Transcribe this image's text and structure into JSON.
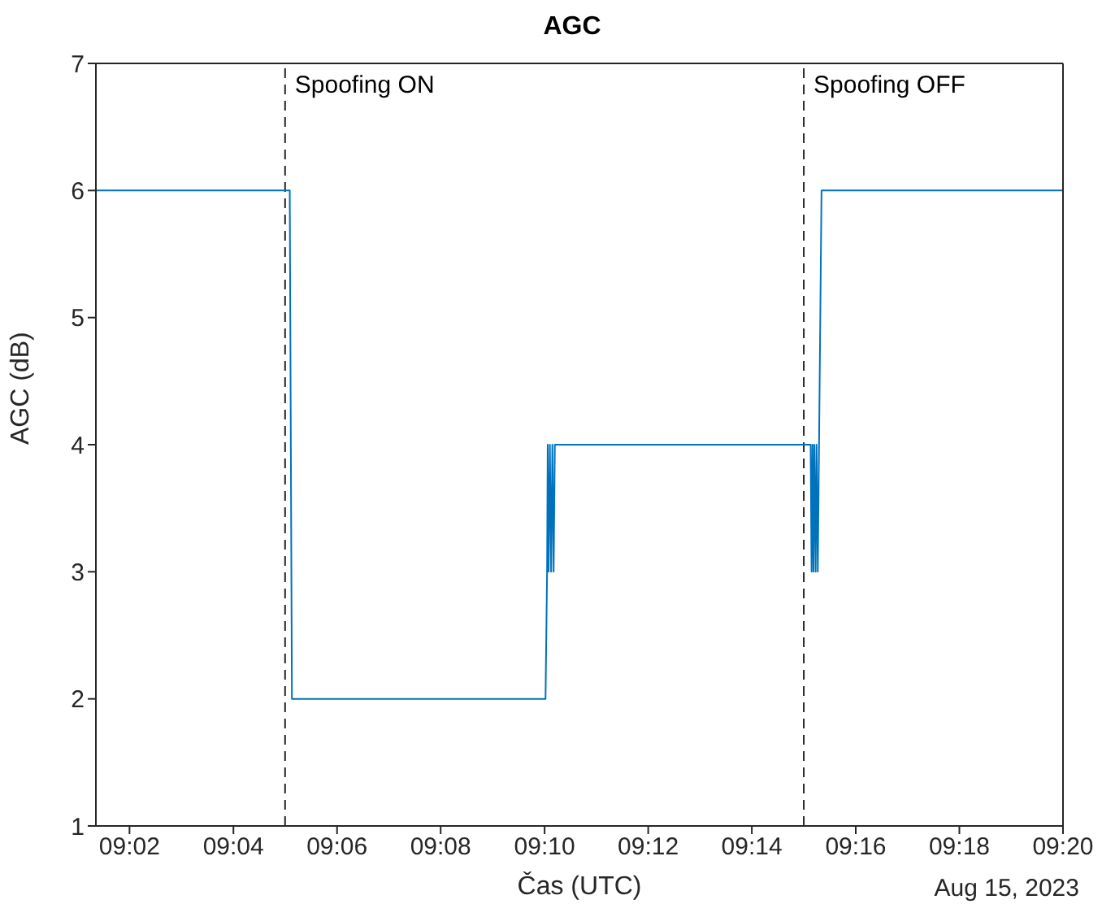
{
  "chart_data": {
    "type": "line",
    "title": "AGC",
    "xlabel": "Čas (UTC)",
    "ylabel": "AGC (dB)",
    "annotations": [
      "Aug 15, 2023"
    ],
    "xlim": [
      9.0225,
      9.3333
    ],
    "xticks": [
      {
        "value": 9.0333,
        "label": "09:02"
      },
      {
        "value": 9.0667,
        "label": "09:04"
      },
      {
        "value": 9.1,
        "label": "09:06"
      },
      {
        "value": 9.1333,
        "label": "09:08"
      },
      {
        "value": 9.1667,
        "label": "09:10"
      },
      {
        "value": 9.2,
        "label": "09:12"
      },
      {
        "value": 9.2333,
        "label": "09:14"
      },
      {
        "value": 9.2667,
        "label": "09:16"
      },
      {
        "value": 9.3,
        "label": "09:18"
      },
      {
        "value": 9.3333,
        "label": "09:20"
      }
    ],
    "ylim": [
      1,
      7
    ],
    "yticks": [
      1,
      2,
      3,
      4,
      5,
      6,
      7
    ],
    "legend": false,
    "marker": "none",
    "line_style": "solid",
    "ref_lines": [
      {
        "axis": "x",
        "value": 9.0833,
        "label": "Spoofing ON",
        "color": "#262626",
        "line_style": "dashed"
      },
      {
        "axis": "x",
        "value": 9.25,
        "label": "Spoofing OFF",
        "color": "#262626",
        "line_style": "dashed"
      }
    ],
    "series": [
      {
        "color": "#0072bd",
        "x": [
          9.0225,
          9.0848,
          9.0855,
          9.167,
          9.1675,
          9.1677,
          9.168,
          9.1684,
          9.1688,
          9.1692,
          9.1696,
          9.17,
          9.2522,
          9.2525,
          9.2528,
          9.2531,
          9.2534,
          9.2538,
          9.2541,
          9.2545,
          9.2553,
          9.2557,
          9.3333
        ],
        "values": [
          6,
          6,
          2,
          2,
          3,
          4,
          3,
          4,
          3,
          4,
          3,
          4,
          4,
          3,
          4,
          3,
          4,
          3,
          4,
          3,
          5,
          6,
          6
        ]
      }
    ]
  }
}
